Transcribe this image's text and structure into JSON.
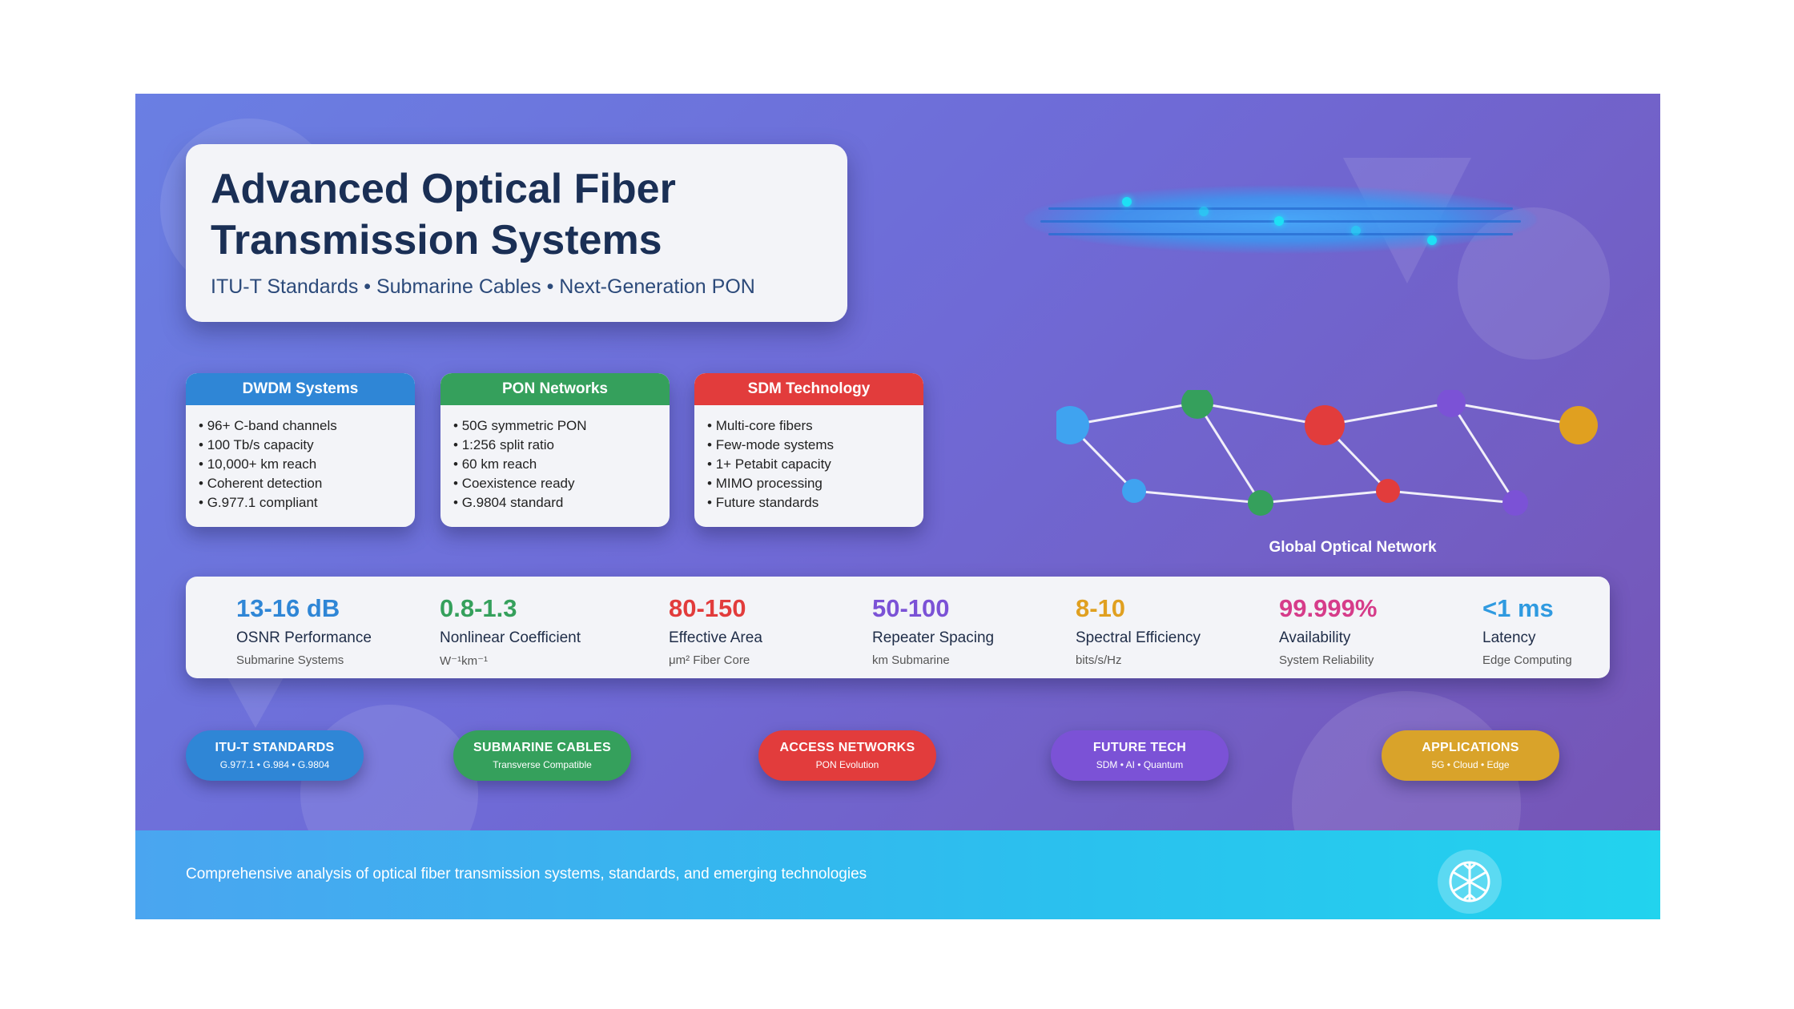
{
  "header": {
    "title_line1": "Advanced Optical Fiber",
    "title_line2": "Transmission Systems",
    "subtitle": "ITU-T Standards • Submarine Cables • Next-Generation PON"
  },
  "cards": [
    {
      "title": "DWDM Systems",
      "color": "#2f86d6",
      "items": [
        "96+ C-band channels",
        "100 Tb/s capacity",
        "10,000+ km reach",
        "Coherent detection",
        "G.977.1 compliant"
      ]
    },
    {
      "title": "PON Networks",
      "color": "#35a05c",
      "items": [
        "50G symmetric PON",
        "1:256 split ratio",
        "60 km reach",
        "Coexistence ready",
        "G.9804 standard"
      ]
    },
    {
      "title": "SDM Technology",
      "color": "#e23c3c",
      "items": [
        "Multi-core fibers",
        "Few-mode systems",
        "1+ Petabit capacity",
        "MIMO processing",
        "Future standards"
      ]
    }
  ],
  "network": {
    "label": "Global Optical Network"
  },
  "stats": [
    {
      "value": "13-16 dB",
      "label": "OSNR Performance",
      "sub": "Submarine Systems",
      "color": "#2f86d6"
    },
    {
      "value": "0.8-1.3",
      "label": "Nonlinear Coefficient",
      "sub": "W⁻¹km⁻¹",
      "color": "#35a05c"
    },
    {
      "value": "80-150",
      "label": "Effective Area",
      "sub": "μm² Fiber Core",
      "color": "#e23c3c"
    },
    {
      "value": "50-100",
      "label": "Repeater Spacing",
      "sub": "km Submarine",
      "color": "#7b52d6"
    },
    {
      "value": "8-10",
      "label": "Spectral Efficiency",
      "sub": "bits/s/Hz",
      "color": "#e0a020"
    },
    {
      "value": "99.999%",
      "label": "Availability",
      "sub": "System Reliability",
      "color": "#d63c8a"
    },
    {
      "value": "<1 ms",
      "label": "Latency",
      "sub": "Edge Computing",
      "color": "#2f9ae0"
    }
  ],
  "pills": [
    {
      "title": "ITU-T STANDARDS",
      "sub": "G.977.1 • G.984 • G.9804",
      "color": "#2f86d6"
    },
    {
      "title": "SUBMARINE CABLES",
      "sub": "Transverse Compatible",
      "color": "#35a05c"
    },
    {
      "title": "ACCESS NETWORKS",
      "sub": "PON Evolution",
      "color": "#e23c3c"
    },
    {
      "title": "FUTURE TECH",
      "sub": "SDM • AI • Quantum",
      "color": "#7b52d6"
    },
    {
      "title": "APPLICATIONS",
      "sub": "5G • Cloud • Edge",
      "color": "#d9a32a"
    }
  ],
  "footer": {
    "text": "Comprehensive analysis of optical fiber transmission systems, standards, and emerging technologies",
    "icon": "snowflake-icon"
  }
}
